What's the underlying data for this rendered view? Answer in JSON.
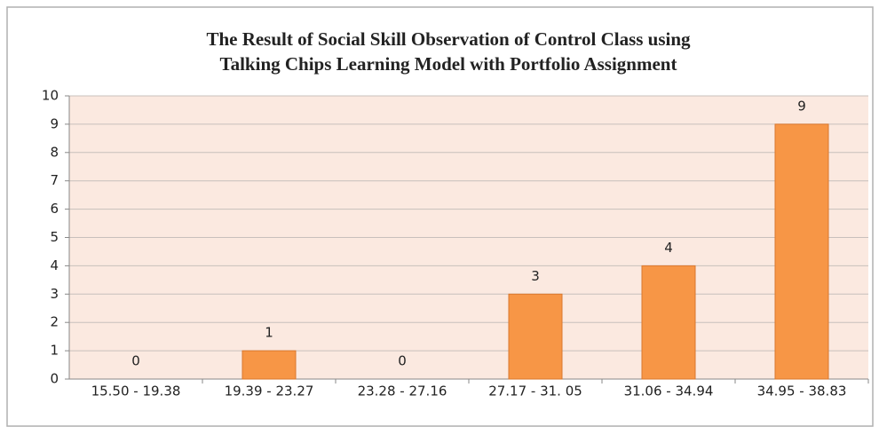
{
  "chart_data": {
    "type": "bar",
    "title": [
      "The Result of Social Skill Observation of Control Class using",
      "Talking Chips Learning Model with Portfolio Assignment"
    ],
    "categories": [
      "15.50 - 19.38",
      "19.39 - 23.27",
      "23.28 - 27.16",
      "27.17 - 31. 05",
      "31.06 - 34.94",
      "34.95 - 38.83"
    ],
    "values": [
      0,
      1,
      0,
      3,
      4,
      9
    ],
    "color": "#f79646",
    "ylim": [
      0,
      10
    ],
    "yticks": [
      0,
      1,
      2,
      3,
      4,
      5,
      6,
      7,
      8,
      9,
      10
    ],
    "grid": true
  }
}
